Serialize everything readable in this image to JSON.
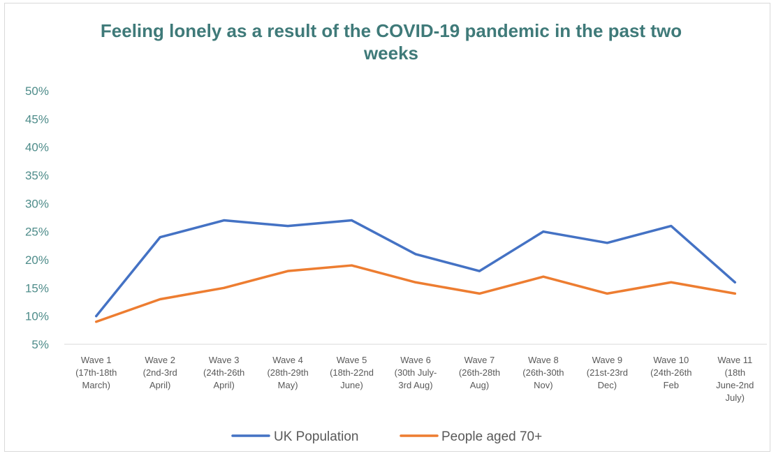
{
  "chart_data": {
    "type": "line",
    "title": "Feeling lonely as a result of the COVID-19 pandemic in the past two weeks",
    "categories": [
      [
        "Wave 1",
        "(17th-18th",
        "March)"
      ],
      [
        "Wave 2",
        "(2nd-3rd",
        "April)"
      ],
      [
        "Wave 3",
        "(24th-26th",
        "April)"
      ],
      [
        "Wave 4",
        "(28th-29th",
        "May)"
      ],
      [
        "Wave 5",
        "(18th-22nd",
        "June)"
      ],
      [
        "Wave 6",
        "(30th July-",
        "3rd Aug)"
      ],
      [
        "Wave 7",
        "(26th-28th",
        "Aug)"
      ],
      [
        "Wave 8",
        "(26th-30th",
        "Nov)"
      ],
      [
        "Wave 9",
        "(21st-23rd",
        "Dec)"
      ],
      [
        "Wave 10",
        "(24th-26th",
        "Feb"
      ],
      [
        "Wave 11",
        "(18th",
        "June-2nd",
        "July)"
      ]
    ],
    "series": [
      {
        "name": "UK Population",
        "color": "#4472c4",
        "values": [
          10,
          24,
          27,
          26,
          27,
          21,
          18,
          25,
          23,
          26,
          16
        ]
      },
      {
        "name": "People aged 70+",
        "color": "#ed7d31",
        "values": [
          9,
          13,
          15,
          18,
          19,
          16,
          14,
          17,
          14,
          16,
          14
        ]
      }
    ],
    "yticks": [
      "5%",
      "10%",
      "15%",
      "20%",
      "25%",
      "30%",
      "35%",
      "40%",
      "45%",
      "50%"
    ],
    "ylim": [
      5,
      50
    ],
    "grid": false,
    "legend": "bottom"
  }
}
